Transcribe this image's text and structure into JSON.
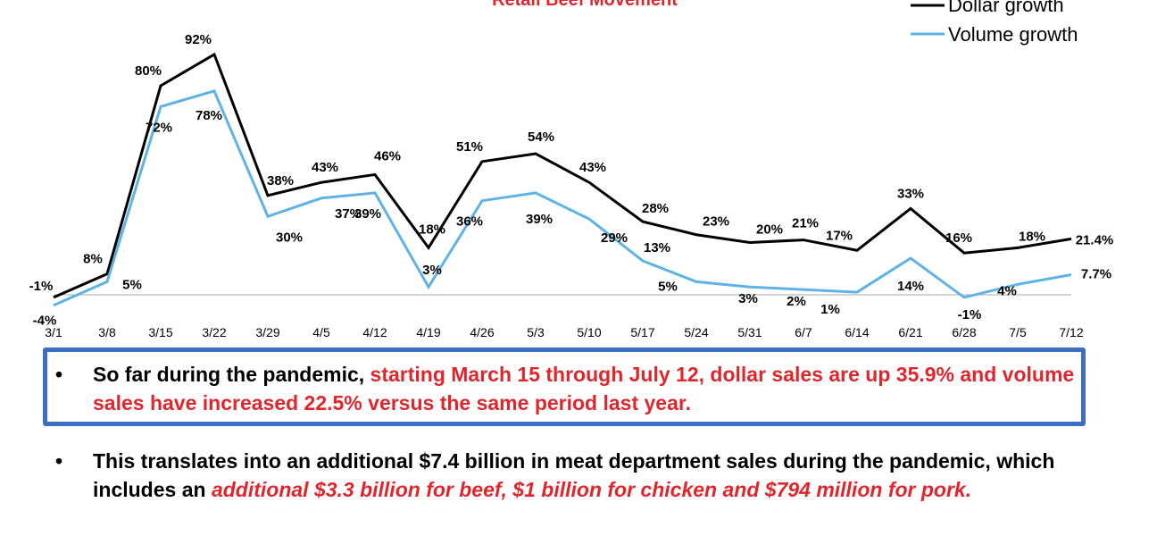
{
  "chart_data": {
    "type": "line",
    "title": "Retail Beef Movement",
    "categories": [
      "3/1",
      "3/8",
      "3/15",
      "3/22",
      "3/29",
      "4/5",
      "4/12",
      "4/19",
      "4/26",
      "5/3",
      "5/10",
      "5/17",
      "5/24",
      "5/31",
      "6/7",
      "6/14",
      "6/21",
      "6/28",
      "7/5",
      "7/12"
    ],
    "series": [
      {
        "name": "Dollar growth",
        "values": [
          -1,
          8,
          80,
          92,
          38,
          43,
          46,
          18,
          51,
          54,
          43,
          28,
          23,
          20,
          21,
          17,
          33,
          16,
          18,
          21.4
        ],
        "labels": [
          "-1%",
          "8%",
          "80%",
          "92%",
          "38%",
          "43%",
          "46%",
          "18%",
          "51%",
          "54%",
          "43%",
          "28%",
          "23%",
          "20%",
          "21%",
          "17%",
          "33%",
          "16%",
          "18%",
          "21.4%"
        ]
      },
      {
        "name": "Volume growth",
        "values": [
          -4,
          5,
          72,
          78,
          30,
          37,
          39,
          3,
          36,
          39,
          29,
          13,
          5,
          3,
          2,
          1,
          14,
          -1,
          4,
          7.7
        ],
        "labels": [
          "-4%",
          "5%",
          "72%",
          "78%",
          "30%",
          "37%",
          "39%",
          "3%",
          "36%",
          "39%",
          "29%",
          "13%",
          "5%",
          "3%",
          "2%",
          "1%",
          "14%",
          "-1%",
          "4%",
          "7.7%"
        ]
      }
    ],
    "colors": {
      "dollar": "#000000",
      "volume": "#5eb3e4",
      "title": "#e0262d"
    },
    "legend_position": "top-right",
    "grid": false,
    "ylim": [
      -8,
      100
    ]
  },
  "bullets": {
    "b1": {
      "plain": "So far during the pandemic, ",
      "red": "starting March 15 through July 12, dollar sales are up 35.9% and volume sales have increased 22.5% versus the same period last year."
    },
    "b2": {
      "plain": "This translates into an additional $7.4 billion in meat department sales during the pandemic, which includes an ",
      "red_italic": "additional $3.3 billion for beef, $1 billion for chicken and $794 million for pork."
    }
  }
}
